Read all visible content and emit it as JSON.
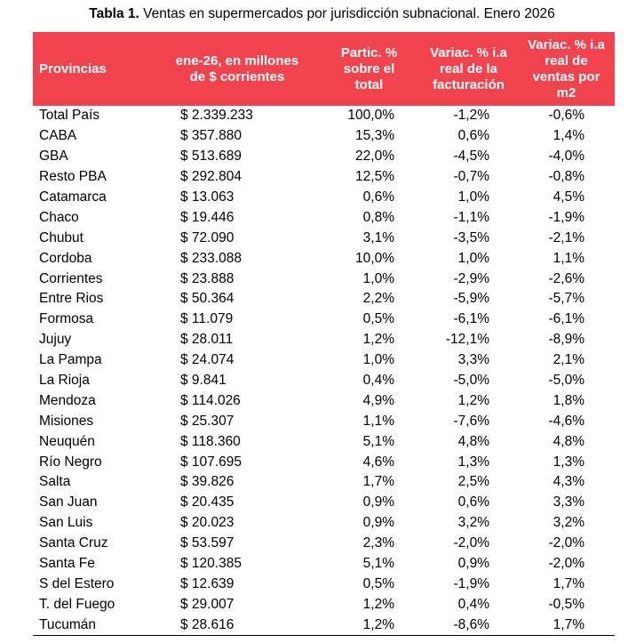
{
  "title": {
    "label": "Tabla 1.",
    "text": "Ventas en supermercados por jurisdicción subnacional. Enero 2026"
  },
  "table": {
    "headers": [
      [
        "Provincias"
      ],
      [
        "ene-26, en millones",
        "de $ corrientes"
      ],
      [
        "Partic. %",
        "sobre el",
        "total"
      ],
      [
        "Variac. % i.a",
        "real de la",
        "facturación"
      ],
      [
        "Variac. % i.a",
        "real de",
        "ventas por",
        "m2"
      ]
    ],
    "rows": [
      [
        "Total País",
        "$ 2.339.233",
        "100,0%",
        "-1,2%",
        "-0,6%"
      ],
      [
        "CABA",
        "$ 357.880",
        "15,3%",
        "0,6%",
        "1,4%"
      ],
      [
        "GBA",
        "$ 513.689",
        "22,0%",
        "-4,5%",
        "-4,0%"
      ],
      [
        "Resto PBA",
        "$ 292.804",
        "12,5%",
        "-0,7%",
        "-0,8%"
      ],
      [
        "Catamarca",
        "$ 13.063",
        "0,6%",
        "1,0%",
        "4,5%"
      ],
      [
        "Chaco",
        "$ 19.446",
        "0,8%",
        "-1,1%",
        "-1,9%"
      ],
      [
        "Chubut",
        "$ 72.090",
        "3,1%",
        "-3,5%",
        "-2,1%"
      ],
      [
        "Cordoba",
        "$ 233.088",
        "10,0%",
        "1,0%",
        "1,1%"
      ],
      [
        "Corrientes",
        "$ 23.888",
        "1,0%",
        "-2,9%",
        "-2,6%"
      ],
      [
        "Entre Rios",
        "$ 50.364",
        "2,2%",
        "-5,9%",
        "-5,7%"
      ],
      [
        "Formosa",
        "$ 11.079",
        "0,5%",
        "-6,1%",
        "-6,1%"
      ],
      [
        "Jujuy",
        "$ 28.011",
        "1,2%",
        "-12,1%",
        "-8,9%"
      ],
      [
        "La Pampa",
        "$ 24.074",
        "1,0%",
        "3,3%",
        "2,1%"
      ],
      [
        "La Rioja",
        "$ 9.841",
        "0,4%",
        "-5,0%",
        "-5,0%"
      ],
      [
        "Mendoza",
        "$ 114.026",
        "4,9%",
        "1,2%",
        "1,8%"
      ],
      [
        "Misiones",
        "$ 25.307",
        "1,1%",
        "-7,6%",
        "-4,6%"
      ],
      [
        "Neuquén",
        "$ 118.360",
        "5,1%",
        "4,8%",
        "4,8%"
      ],
      [
        "Río Negro",
        "$ 107.695",
        "4,6%",
        "1,3%",
        "1,3%"
      ],
      [
        "Salta",
        "$ 39.826",
        "1,7%",
        "2,5%",
        "4,3%"
      ],
      [
        "San Juan",
        "$ 20.435",
        "0,9%",
        "0,6%",
        "3,3%"
      ],
      [
        "San Luis",
        "$ 20.023",
        "0,9%",
        "3,2%",
        "3,2%"
      ],
      [
        "Santa Cruz",
        "$ 53.597",
        "2,3%",
        "-2,0%",
        "-2,0%"
      ],
      [
        "Santa Fe",
        "$ 120.385",
        "5,1%",
        "0,9%",
        "-2,0%"
      ],
      [
        "S del Estero",
        "$ 12.639",
        "0,5%",
        "-1,9%",
        "1,7%"
      ],
      [
        "T. del Fuego",
        "$ 29.007",
        "1,2%",
        "0,4%",
        "-0,5%"
      ],
      [
        "Tucumán",
        "$ 28.616",
        "1,2%",
        "-8,6%",
        "1,7%"
      ]
    ]
  }
}
